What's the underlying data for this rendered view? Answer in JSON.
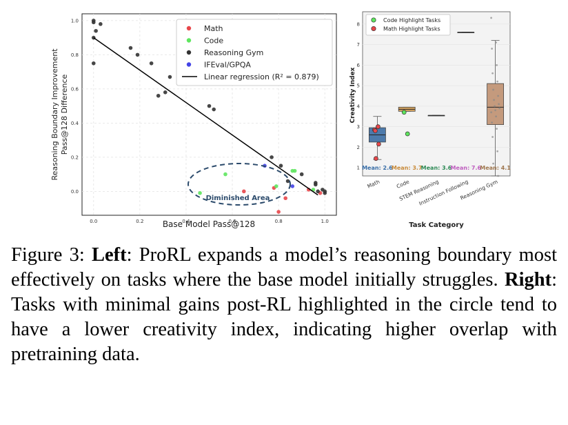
{
  "chart_data": [
    {
      "type": "scatter",
      "xlabel": "Base Model Pass@128",
      "ylabel_line1": "Reasoning Boundary Improvement",
      "ylabel_line2": "Pass@128 Difference",
      "xlim": [
        -0.05,
        1.05
      ],
      "ylim": [
        -0.14,
        1.04
      ],
      "xticks": [
        "0.0",
        "0.2",
        "0.4",
        "0.6",
        "0.8",
        "1.0"
      ],
      "yticks": [
        "0.0",
        "0.2",
        "0.4",
        "0.6",
        "0.8",
        "1.0"
      ],
      "grid": true,
      "legend_position": "top-right",
      "colors": {
        "Math": "#e8464a",
        "Code": "#5ee65e",
        "Reasoning Gym": "#333333",
        "IFEval/GPQA": "#4444e6"
      },
      "series": [
        {
          "name": "Math",
          "points": [
            [
              0.65,
              0.0
            ],
            [
              0.78,
              0.02
            ],
            [
              0.8,
              -0.12
            ],
            [
              0.83,
              -0.04
            ],
            [
              0.93,
              0.01
            ],
            [
              0.98,
              -0.01
            ]
          ]
        },
        {
          "name": "Code",
          "points": [
            [
              0.46,
              -0.01
            ],
            [
              0.57,
              0.1
            ],
            [
              0.79,
              0.03
            ],
            [
              0.86,
              0.12
            ],
            [
              0.87,
              0.12
            ],
            [
              0.95,
              0.01
            ]
          ]
        },
        {
          "name": "Reasoning Gym",
          "points": [
            [
              0.0,
              1.0
            ],
            [
              0.0,
              0.99
            ],
            [
              0.0,
              0.9
            ],
            [
              0.0,
              0.75
            ],
            [
              0.01,
              0.94
            ],
            [
              0.03,
              0.98
            ],
            [
              0.16,
              0.84
            ],
            [
              0.19,
              0.8
            ],
            [
              0.25,
              0.75
            ],
            [
              0.28,
              0.56
            ],
            [
              0.31,
              0.58
            ],
            [
              0.33,
              0.67
            ],
            [
              0.5,
              0.5
            ],
            [
              0.52,
              0.48
            ],
            [
              0.77,
              0.2
            ],
            [
              0.81,
              0.15
            ],
            [
              0.84,
              0.06
            ],
            [
              0.9,
              0.1
            ],
            [
              0.96,
              0.05
            ],
            [
              0.96,
              0.04
            ],
            [
              0.97,
              0.0
            ],
            [
              0.99,
              0.01
            ],
            [
              1.0,
              0.0
            ],
            [
              1.0,
              -0.01
            ]
          ]
        },
        {
          "name": "IFEval/GPQA",
          "points": [
            [
              0.74,
              0.15
            ],
            [
              0.86,
              0.03
            ]
          ]
        }
      ],
      "regression": {
        "label": "Linear regression (R² = 0.879)",
        "slope": -0.95,
        "intercept": 0.9,
        "x_range": [
          0.0,
          0.97
        ]
      },
      "annotation": "Diminished Area"
    },
    {
      "type": "box",
      "xlabel": "Task Category",
      "ylabel": "Creativity Index",
      "ylim": [
        0.6,
        8.6
      ],
      "yticks": [
        "1",
        "2",
        "3",
        "4",
        "5",
        "6",
        "7",
        "8"
      ],
      "legend_position": "top-left",
      "legend": [
        {
          "label": "Code Highlight Tasks",
          "color": "#5ee65e"
        },
        {
          "label": "Math Highlight Tasks",
          "color": "#e8464a"
        }
      ],
      "categories": [
        {
          "name": "Math",
          "color": "#4d7aab",
          "mean_label": "Mean: 2.6",
          "label_color": "#3a6fa8",
          "q1": 2.25,
          "median": 2.6,
          "q3": 2.95,
          "whisker_low": 1.4,
          "whisker_high": 3.5,
          "highlight": "math",
          "highlight_points": [
            2.85,
            3.0,
            2.8,
            2.15,
            1.45
          ]
        },
        {
          "name": "Code",
          "color": "#d9a660",
          "mean_label": "Mean: 3.7",
          "label_color": "#c98b3a",
          "q1": 3.75,
          "median": 3.85,
          "q3": 3.95,
          "whisker_low": 3.75,
          "whisker_high": 3.95,
          "highlight": "code",
          "highlight_points": [
            3.7,
            2.65
          ]
        },
        {
          "name": "STEM Reasoning",
          "color": "#4c9a72",
          "mean_label": "Mean: 3.6",
          "label_color": "#2e8b57",
          "q1": 3.55,
          "median": 3.55,
          "q3": 3.55,
          "whisker_low": 3.55,
          "whisker_high": 3.55,
          "highlight": null,
          "highlight_points": []
        },
        {
          "name": "Instruction Following",
          "color": "#c77ac7",
          "mean_label": "Mean: 7.6",
          "label_color": "#c060c0",
          "q1": 7.6,
          "median": 7.6,
          "q3": 7.6,
          "whisker_low": 7.6,
          "whisker_high": 7.6,
          "highlight": null,
          "highlight_points": []
        },
        {
          "name": "Reasoning Gym",
          "color": "#c49a7d",
          "mean_label": "Mean: 4.1",
          "label_color": "#a07850",
          "q1": 3.1,
          "median": 3.95,
          "q3": 5.1,
          "whisker_low": 0.6,
          "whisker_high": 7.2,
          "highlight": null,
          "highlight_points": [],
          "points": [
            8.3,
            7.1,
            6.8,
            6.0,
            5.6,
            5.2,
            4.8,
            4.5,
            4.3,
            4.1,
            4.0,
            3.9,
            3.8,
            3.7,
            3.5,
            3.2,
            2.9,
            2.5,
            1.8,
            1.2,
            0.6
          ]
        }
      ]
    }
  ],
  "caption": {
    "label": "Figure 3: ",
    "left_head": "Left",
    "left_text": ": ProRL expands a model’s reasoning boundary most effectively on tasks where the base model initially struggles. ",
    "right_head": "Right",
    "right_text": ": Tasks with minimal gains post-RL highlighted in the circle tend to have a lower creativity index, indicating higher overlap with pretraining data."
  }
}
